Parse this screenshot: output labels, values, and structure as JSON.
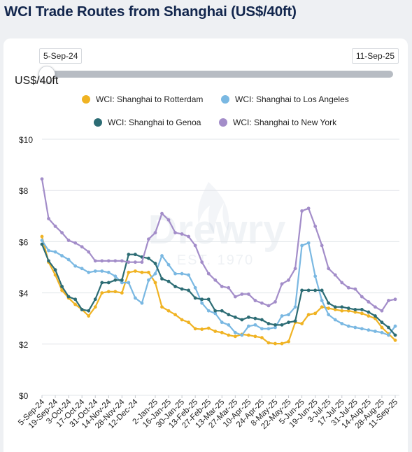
{
  "title": "WCI Trade Routes from Shanghai (US$/40ft)",
  "slider": {
    "start_label": "5-Sep-24",
    "end_label": "11-Sep-25"
  },
  "watermark": {
    "brand": "Drewry",
    "est": "EST. 1970"
  },
  "chart_data": {
    "type": "line",
    "ylabel": "US$/40ft",
    "ylim": [
      0,
      10
    ],
    "yticks": [
      "$0",
      "$2",
      "$4",
      "$6",
      "$8",
      "$10"
    ],
    "grid": true,
    "legend_position": "top",
    "x": [
      "5-Sep-24",
      "12-Sep-24",
      "19-Sep-24",
      "26-Sep-24",
      "3-Oct-24",
      "10-Oct-24",
      "17-Oct-24",
      "24-Oct-24",
      "31-Oct-24",
      "7-Nov-24",
      "14-Nov-24",
      "21-Nov-24",
      "28-Nov-24",
      "5-Dec-24",
      "12-Dec-24",
      "19-Dec-24",
      "26-Dec-24",
      "2-Jan-25",
      "9-Jan-25",
      "16-Jan-25",
      "23-Jan-25",
      "30-Jan-25",
      "6-Feb-25",
      "13-Feb-25",
      "20-Feb-25",
      "27-Feb-25",
      "6-Mar-25",
      "13-Mar-25",
      "20-Mar-25",
      "27-Mar-25",
      "3-Apr-25",
      "10-Apr-25",
      "17-Apr-25",
      "24-Apr-25",
      "1-May-25",
      "8-May-25",
      "15-May-25",
      "22-May-25",
      "29-May-25",
      "5-Jun-25",
      "12-Jun-25",
      "19-Jun-25",
      "26-Jun-25",
      "3-Jul-25",
      "10-Jul-25",
      "17-Jul-25",
      "24-Jul-25",
      "31-Jul-25",
      "7-Aug-25",
      "14-Aug-25",
      "21-Aug-25",
      "28-Aug-25",
      "4-Sep-25",
      "11-Sep-25"
    ],
    "xtick_labels": [
      "5-Sep-24",
      "19-Sep-24",
      "3-Oct-24",
      "17-Oct-24",
      "31-Oct-24",
      "14-Nov-24",
      "28-Nov-24",
      "12-Dec-24",
      "2-Jan-25",
      "16-Jan-25",
      "30-Jan-25",
      "13-Feb-25",
      "27-Feb-25",
      "13-Mar-25",
      "27-Mar-25",
      "10-Apr-25",
      "24-Apr-25",
      "8-May-25",
      "22-May-25",
      "5-Jun-25",
      "19-Jun-25",
      "3-Jul-25",
      "17-Jul-25",
      "31-Jul-25",
      "14-Aug-25",
      "28-Aug-25",
      "11-Sep-25"
    ],
    "series": [
      {
        "name": "WCI: Shanghai to Rotterdam",
        "color": "#f0b323",
        "values": [
          6.2,
          5.2,
          4.7,
          4.1,
          3.8,
          3.55,
          3.35,
          3.1,
          3.45,
          4.0,
          4.05,
          4.05,
          4.0,
          4.8,
          4.85,
          4.8,
          4.8,
          4.4,
          3.45,
          3.3,
          3.15,
          2.95,
          2.85,
          2.6,
          2.58,
          2.62,
          2.5,
          2.45,
          2.35,
          2.3,
          2.38,
          2.35,
          2.3,
          2.25,
          2.05,
          2.02,
          2.02,
          2.1,
          2.85,
          2.8,
          3.15,
          3.2,
          3.45,
          3.4,
          3.35,
          3.3,
          3.3,
          3.25,
          3.2,
          3.1,
          3.0,
          2.65,
          2.4,
          2.15
        ]
      },
      {
        "name": "WCI: Shanghai to Los Angeles",
        "color": "#7ab8e2",
        "values": [
          6.05,
          5.65,
          5.6,
          5.45,
          5.3,
          5.05,
          4.95,
          4.8,
          4.85,
          4.85,
          4.8,
          4.65,
          4.4,
          4.4,
          3.8,
          3.6,
          4.5,
          4.75,
          5.45,
          5.1,
          4.75,
          4.75,
          4.7,
          4.2,
          3.6,
          3.3,
          3.2,
          2.85,
          2.75,
          2.45,
          2.35,
          2.7,
          2.75,
          2.6,
          2.6,
          2.65,
          3.1,
          3.15,
          3.45,
          5.85,
          5.95,
          4.65,
          3.7,
          3.15,
          2.95,
          2.8,
          2.7,
          2.65,
          2.6,
          2.55,
          2.5,
          2.45,
          2.35,
          2.7
        ]
      },
      {
        "name": "WCI: Shanghai to Genoa",
        "color": "#2c6c74",
        "values": [
          5.9,
          5.25,
          4.9,
          4.25,
          3.85,
          3.75,
          3.35,
          3.3,
          3.75,
          4.4,
          4.4,
          4.5,
          4.5,
          5.5,
          5.5,
          5.4,
          5.35,
          5.15,
          4.55,
          4.45,
          4.25,
          4.15,
          4.1,
          3.8,
          3.75,
          3.75,
          3.3,
          3.3,
          3.15,
          3.05,
          2.95,
          3.05,
          3.0,
          2.95,
          2.8,
          2.75,
          2.75,
          2.85,
          2.9,
          4.1,
          4.1,
          4.1,
          4.1,
          3.6,
          3.45,
          3.45,
          3.4,
          3.35,
          3.35,
          3.25,
          3.1,
          2.85,
          2.65,
          2.35
        ]
      },
      {
        "name": "WCI: Shanghai to New York",
        "color": "#a38dc9",
        "values": [
          8.45,
          6.9,
          6.6,
          6.35,
          6.05,
          5.95,
          5.8,
          5.6,
          5.25,
          5.25,
          5.25,
          5.25,
          5.25,
          5.2,
          5.2,
          5.2,
          6.1,
          6.35,
          7.1,
          6.85,
          6.35,
          6.3,
          6.2,
          5.85,
          5.2,
          4.75,
          4.5,
          4.25,
          4.2,
          3.85,
          3.95,
          3.95,
          3.7,
          3.6,
          3.5,
          3.65,
          4.35,
          4.5,
          4.95,
          7.2,
          7.3,
          6.6,
          5.85,
          4.95,
          4.7,
          4.4,
          4.2,
          4.15,
          3.85,
          3.65,
          3.45,
          3.3,
          3.7,
          3.75
        ]
      }
    ]
  }
}
